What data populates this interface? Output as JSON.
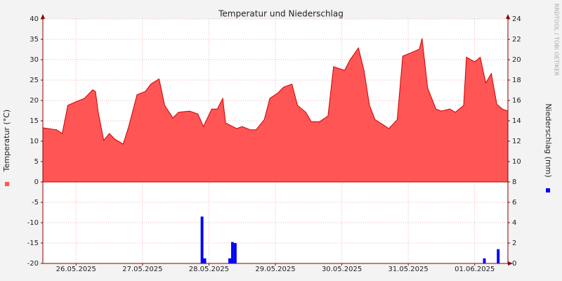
{
  "chart_data": {
    "type": "combo",
    "title": "Temperatur und Niederschlag",
    "ylabel": "Temperatur (°C)",
    "y2label": "Niederschlag (mm)",
    "watermark": "RRDTOOL / TOBI OETIKER",
    "xlim": [
      0,
      168
    ],
    "xticks": [
      {
        "value": 12,
        "label": "26.05.2025"
      },
      {
        "value": 36,
        "label": "27.05.2025"
      },
      {
        "value": 60,
        "label": "28.05.2025"
      },
      {
        "value": 84,
        "label": "29.05.2025"
      },
      {
        "value": 108,
        "label": "30.05.2025"
      },
      {
        "value": 132,
        "label": "31.05.2025"
      },
      {
        "value": 156,
        "label": "01.06.2025"
      }
    ],
    "ylim": [
      -20,
      40
    ],
    "yticks": [
      -20,
      -15,
      -10,
      -5,
      0,
      5,
      10,
      15,
      20,
      25,
      30,
      35,
      40
    ],
    "y2lim": [
      0,
      24
    ],
    "y2ticks": [
      0,
      2,
      4,
      6,
      8,
      10,
      12,
      14,
      16,
      18,
      20,
      22,
      24
    ],
    "grid": true,
    "series": [
      {
        "type": "area",
        "color": "#ff5555",
        "x": [
          0,
          5,
          7,
          9,
          12,
          15,
          18,
          19,
          20,
          22,
          24,
          26,
          29,
          31,
          34,
          37,
          39,
          42,
          44,
          47,
          49,
          53,
          56,
          58,
          61,
          63,
          65,
          66,
          70,
          72,
          75,
          77,
          80,
          82,
          85,
          87,
          90,
          92,
          95,
          97,
          100,
          103,
          105,
          109,
          111,
          114,
          116,
          118,
          120,
          123,
          125,
          128,
          130,
          133,
          136,
          137,
          139,
          142,
          144,
          147,
          149,
          152,
          153,
          156,
          158,
          160,
          162,
          164,
          166,
          168
        ],
        "values": [
          13.3,
          12.8,
          11.9,
          18.8,
          19.7,
          20.5,
          22.6,
          22.2,
          17.1,
          10.2,
          11.9,
          10.5,
          9.3,
          13.6,
          21.4,
          22.2,
          24,
          25.3,
          18.8,
          15.7,
          17.1,
          17.4,
          16.7,
          13.6,
          17.9,
          17.9,
          20.5,
          14.5,
          13.1,
          13.6,
          12.8,
          12.8,
          15.3,
          20.5,
          21.9,
          23.3,
          24,
          18.8,
          17.1,
          14.8,
          14.8,
          16.2,
          28.3,
          27.4,
          30,
          32.9,
          27.4,
          18.8,
          15.3,
          14,
          13.1,
          15.3,
          30.9,
          31.7,
          32.6,
          35.2,
          23.1,
          17.9,
          17.4,
          17.9,
          17.1,
          18.8,
          30.6,
          29.5,
          30.6,
          24.3,
          26.6,
          19.1,
          17.9,
          17.4
        ]
      },
      {
        "type": "bar",
        "axis": "y2",
        "color": "#0000ff",
        "x": [
          57,
          58,
          67,
          68,
          69,
          159,
          164
        ],
        "values": [
          4.6,
          0.5,
          0.5,
          2.1,
          2.0,
          0.5,
          1.4
        ]
      }
    ]
  }
}
